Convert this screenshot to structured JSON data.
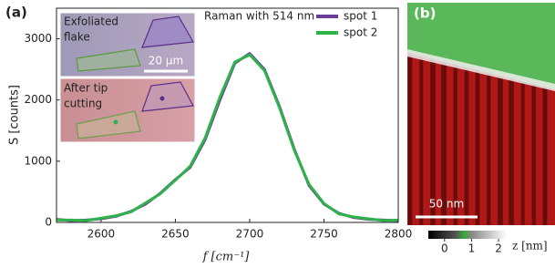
{
  "chart_data": {
    "type": "line",
    "panel_label": "(a)",
    "annotation": "Raman with 514 nm",
    "x_label": "f [cm⁻¹]",
    "y_label": "S [counts]",
    "x": [
      2570,
      2580,
      2590,
      2600,
      2610,
      2620,
      2630,
      2640,
      2650,
      2660,
      2670,
      2680,
      2690,
      2700,
      2710,
      2720,
      2730,
      2740,
      2750,
      2760,
      2770,
      2780,
      2790,
      2800
    ],
    "series": [
      {
        "name": "spot 1",
        "color": "#6a3d9a",
        "values": [
          50,
          30,
          40,
          60,
          100,
          180,
          300,
          480,
          700,
          900,
          1350,
          2000,
          2600,
          2760,
          2500,
          1900,
          1200,
          600,
          300,
          150,
          80,
          50,
          40,
          30
        ]
      },
      {
        "name": "spot 2",
        "color": "#2db34a",
        "values": [
          40,
          40,
          30,
          70,
          110,
          170,
          320,
          470,
          690,
          920,
          1380,
          2050,
          2620,
          2740,
          2480,
          1880,
          1180,
          620,
          310,
          140,
          90,
          60,
          30,
          40
        ]
      }
    ],
    "xlim": [
      2570,
      2800
    ],
    "ylim": [
      0,
      3500
    ],
    "xticks": [
      2600,
      2650,
      2700,
      2750,
      2800
    ],
    "yticks": [
      0,
      1000,
      2000,
      3000
    ],
    "legend": "upper right",
    "insets": [
      {
        "lines": [
          "Exfoliated",
          "flake"
        ],
        "scale_bar": "20 µm"
      },
      {
        "lines": [
          "After tip",
          "cutting"
        ]
      }
    ]
  },
  "panel_b": {
    "panel_label": "(b)",
    "scale_bar": "50 nm",
    "colorbar": {
      "ticks": [
        0,
        1,
        2
      ],
      "lim": [
        -0.6,
        2.3
      ],
      "label": "z [nm]"
    }
  }
}
